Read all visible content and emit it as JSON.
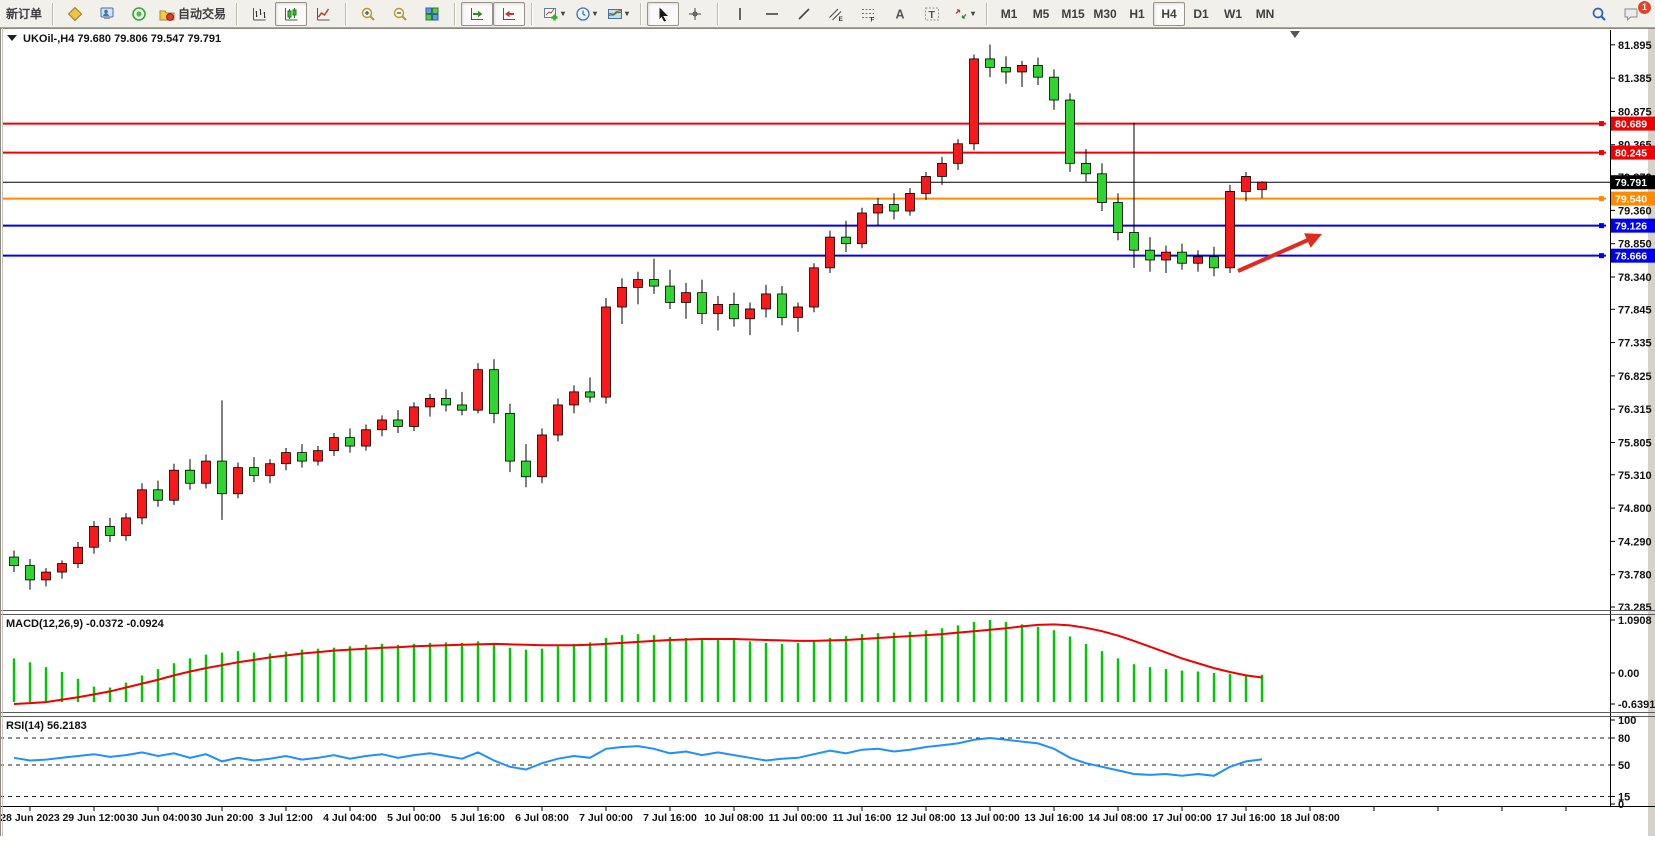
{
  "toolbar": {
    "groups": [
      {
        "items": [
          {
            "name": "new-order",
            "type": "text",
            "label": "新订单"
          }
        ]
      },
      {
        "items": [
          {
            "name": "symbols",
            "icon": "symbols"
          },
          {
            "name": "market-watch",
            "icon": "market-watch"
          },
          {
            "name": "signals",
            "icon": "signals"
          },
          {
            "name": "auto-trading",
            "icon": "autotrading",
            "label": "自动交易"
          }
        ]
      },
      {
        "items": [
          {
            "name": "bar-chart-mode",
            "icon": "bar-chart"
          },
          {
            "name": "candlestick-mode",
            "icon": "candle-chart",
            "pressed": true
          },
          {
            "name": "line-chart-mode",
            "icon": "line-chart"
          }
        ]
      },
      {
        "items": [
          {
            "name": "zoom-in",
            "icon": "zoom-in"
          },
          {
            "name": "zoom-out",
            "icon": "zoom-out"
          },
          {
            "name": "tile-windows",
            "icon": "tile-windows"
          }
        ]
      },
      {
        "items": [
          {
            "name": "auto-scroll",
            "icon": "auto-scroll",
            "pressed": true
          },
          {
            "name": "chart-shift",
            "icon": "chart-shift",
            "pressed": true
          }
        ]
      },
      {
        "items": [
          {
            "name": "new-chart",
            "icon": "new-chart",
            "dropdown": true
          },
          {
            "name": "periods",
            "icon": "period",
            "dropdown": true
          },
          {
            "name": "templates",
            "icon": "template",
            "dropdown": true
          }
        ]
      },
      {
        "items": [
          {
            "name": "cursor",
            "icon": "cursor",
            "pressed": true
          },
          {
            "name": "crosshair",
            "icon": "crosshair"
          }
        ]
      },
      {
        "items": [
          {
            "name": "vertical-line",
            "icon": "v-line"
          },
          {
            "name": "horizontal-line",
            "icon": "h-line"
          },
          {
            "name": "trend-line",
            "icon": "trend-line"
          },
          {
            "name": "equidistant-channel",
            "icon": "channel"
          },
          {
            "name": "fibonacci-retracement",
            "icon": "fibonacci"
          },
          {
            "name": "text",
            "icon": "text"
          },
          {
            "name": "text-label",
            "icon": "text-label"
          },
          {
            "name": "arrow-objects",
            "icon": "arrows",
            "dropdown": true
          }
        ]
      },
      {
        "items": [
          {
            "name": "tf-m1",
            "type": "text",
            "label": "M1"
          },
          {
            "name": "tf-m5",
            "type": "text",
            "label": "M5"
          },
          {
            "name": "tf-m15",
            "type": "text",
            "label": "M15"
          },
          {
            "name": "tf-m30",
            "type": "text",
            "label": "M30"
          },
          {
            "name": "tf-h1",
            "type": "text",
            "label": "H1"
          },
          {
            "name": "tf-h4",
            "type": "text",
            "label": "H4",
            "pressed": true
          },
          {
            "name": "tf-d1",
            "type": "text",
            "label": "D1"
          },
          {
            "name": "tf-w1",
            "type": "text",
            "label": "W1"
          },
          {
            "name": "tf-mn",
            "type": "text",
            "label": "MN"
          }
        ]
      }
    ],
    "right": [
      {
        "name": "search",
        "icon": "search"
      },
      {
        "name": "notifications",
        "icon": "chat",
        "badge": "1"
      }
    ]
  },
  "chart": {
    "title": {
      "text": "UKOil-,H4  79.680 79.806 79.547 79.791"
    },
    "price_axis_ticks": [
      "81.895",
      "81.385",
      "80.875",
      "80.365",
      "79.870",
      "79.360",
      "78.850",
      "78.340",
      "77.845",
      "77.335",
      "76.825",
      "76.315",
      "75.805",
      "75.310",
      "74.800",
      "74.290",
      "73.780",
      "73.285"
    ],
    "levels": [
      {
        "label": "80.689",
        "value": 80.689,
        "color": "#f00000"
      },
      {
        "label": "80.245",
        "value": 80.245,
        "color": "#f00000"
      },
      {
        "label": "79.540",
        "value": 79.54,
        "color": "#ff8a00"
      },
      {
        "label": "79.126",
        "value": 79.126,
        "color": "#0000f0"
      },
      {
        "label": "78.666",
        "value": 78.666,
        "color": "#0000f0"
      }
    ],
    "current_price": {
      "label": "79.791",
      "value": 79.791,
      "color": "#000000"
    },
    "time_axis_labels": [
      "28 Jun 2023",
      "29 Jun 12:00",
      "30 Jun 04:00",
      "30 Jun 20:00",
      "3 Jul 12:00",
      "4 Jul 04:00",
      "5 Jul 00:00",
      "5 Jul 16:00",
      "6 Jul 08:00",
      "7 Jul 00:00",
      "7 Jul 16:00",
      "10 Jul 08:00",
      "11 Jul 00:00",
      "11 Jul 16:00",
      "12 Jul 08:00",
      "13 Jul 00:00",
      "13 Jul 16:00",
      "14 Jul 08:00",
      "17 Jul 00:00",
      "17 Jul 16:00",
      "18 Jul 08:00"
    ]
  },
  "chart_data": {
    "type": "candlestick",
    "symbol": "UKOil-",
    "period": "H4",
    "title": "UKOil-,H4",
    "last_ohlc": {
      "open": "79.680",
      "high": "79.806",
      "low": "79.547",
      "close": "79.791"
    },
    "ylim": [
      73.285,
      82.0
    ],
    "colors": {
      "up": "#f81a1a",
      "down": "#2fd42f",
      "wick": "#000000",
      "macd_hist": "#00c800",
      "macd_signal": "#f00000",
      "rsi_line": "#1e90ff"
    },
    "candles": [
      [
        74.05,
        74.15,
        73.82,
        73.92
      ],
      [
        73.92,
        74.02,
        73.55,
        73.7
      ],
      [
        73.7,
        73.88,
        73.6,
        73.82
      ],
      [
        73.82,
        74.0,
        73.72,
        73.95
      ],
      [
        73.95,
        74.28,
        73.88,
        74.2
      ],
      [
        74.2,
        74.6,
        74.1,
        74.52
      ],
      [
        74.52,
        74.65,
        74.28,
        74.38
      ],
      [
        74.38,
        74.72,
        74.3,
        74.65
      ],
      [
        74.65,
        75.18,
        74.55,
        75.08
      ],
      [
        75.08,
        75.22,
        74.82,
        74.92
      ],
      [
        74.92,
        75.48,
        74.85,
        75.38
      ],
      [
        75.38,
        75.55,
        75.08,
        75.18
      ],
      [
        75.18,
        75.62,
        75.1,
        75.52
      ],
      [
        75.52,
        76.45,
        74.62,
        75.02
      ],
      [
        75.02,
        75.5,
        74.95,
        75.42
      ],
      [
        75.42,
        75.58,
        75.2,
        75.3
      ],
      [
        75.3,
        75.55,
        75.18,
        75.48
      ],
      [
        75.48,
        75.72,
        75.38,
        75.65
      ],
      [
        75.65,
        75.78,
        75.42,
        75.52
      ],
      [
        75.52,
        75.75,
        75.45,
        75.68
      ],
      [
        75.68,
        75.95,
        75.6,
        75.88
      ],
      [
        75.88,
        76.02,
        75.65,
        75.75
      ],
      [
        75.75,
        76.08,
        75.68,
        76.0
      ],
      [
        76.0,
        76.22,
        75.9,
        76.15
      ],
      [
        76.15,
        76.3,
        75.95,
        76.05
      ],
      [
        76.05,
        76.42,
        75.98,
        76.35
      ],
      [
        76.35,
        76.55,
        76.2,
        76.48
      ],
      [
        76.48,
        76.62,
        76.28,
        76.38
      ],
      [
        76.38,
        76.58,
        76.22,
        76.3
      ],
      [
        76.3,
        77.02,
        76.25,
        76.92
      ],
      [
        76.92,
        77.08,
        76.1,
        76.25
      ],
      [
        76.25,
        76.4,
        75.35,
        75.52
      ],
      [
        75.52,
        75.78,
        75.12,
        75.28
      ],
      [
        75.28,
        76.02,
        75.18,
        75.92
      ],
      [
        75.92,
        76.48,
        75.82,
        76.38
      ],
      [
        76.38,
        76.68,
        76.25,
        76.58
      ],
      [
        76.58,
        76.8,
        76.42,
        76.5
      ],
      [
        76.5,
        78.02,
        76.4,
        77.88
      ],
      [
        77.88,
        78.32,
        77.62,
        78.18
      ],
      [
        78.18,
        78.42,
        77.92,
        78.3
      ],
      [
        78.3,
        78.62,
        78.08,
        78.2
      ],
      [
        78.2,
        78.45,
        77.85,
        77.95
      ],
      [
        77.95,
        78.25,
        77.7,
        78.1
      ],
      [
        78.1,
        78.3,
        77.62,
        77.78
      ],
      [
        77.78,
        78.05,
        77.52,
        77.92
      ],
      [
        77.92,
        78.1,
        77.58,
        77.7
      ],
      [
        77.7,
        77.95,
        77.45,
        77.85
      ],
      [
        77.85,
        78.22,
        77.72,
        78.08
      ],
      [
        78.08,
        78.2,
        77.6,
        77.72
      ],
      [
        77.72,
        77.95,
        77.5,
        77.88
      ],
      [
        77.88,
        78.55,
        77.8,
        78.48
      ],
      [
        78.48,
        79.05,
        78.4,
        78.95
      ],
      [
        78.95,
        79.2,
        78.72,
        78.85
      ],
      [
        78.85,
        79.4,
        78.78,
        79.32
      ],
      [
        79.32,
        79.55,
        79.12,
        79.45
      ],
      [
        79.45,
        79.62,
        79.22,
        79.35
      ],
      [
        79.35,
        79.7,
        79.28,
        79.62
      ],
      [
        79.62,
        79.95,
        79.52,
        79.88
      ],
      [
        79.88,
        80.18,
        79.75,
        80.08
      ],
      [
        80.08,
        80.45,
        79.98,
        80.38
      ],
      [
        80.38,
        81.75,
        80.28,
        81.68
      ],
      [
        81.68,
        81.9,
        81.4,
        81.55
      ],
      [
        81.55,
        81.72,
        81.3,
        81.48
      ],
      [
        81.48,
        81.65,
        81.25,
        81.58
      ],
      [
        81.58,
        81.7,
        81.28,
        81.4
      ],
      [
        81.4,
        81.52,
        80.9,
        81.05
      ],
      [
        81.05,
        81.15,
        79.95,
        80.08
      ],
      [
        80.08,
        80.3,
        79.8,
        79.92
      ],
      [
        79.92,
        80.08,
        79.35,
        79.48
      ],
      [
        79.48,
        79.62,
        78.9,
        79.02
      ],
      [
        79.02,
        80.7,
        78.48,
        78.75
      ],
      [
        78.75,
        78.95,
        78.42,
        78.6
      ],
      [
        78.6,
        78.82,
        78.4,
        78.72
      ],
      [
        78.72,
        78.85,
        78.45,
        78.55
      ],
      [
        78.55,
        78.75,
        78.42,
        78.65
      ],
      [
        78.65,
        78.8,
        78.35,
        78.48
      ],
      [
        78.48,
        79.75,
        78.4,
        79.65
      ],
      [
        79.65,
        79.95,
        79.5,
        79.88
      ],
      [
        79.68,
        79.806,
        79.547,
        79.791
      ]
    ],
    "indicators": {
      "macd": {
        "label": "MACD(12,26,9) -0.0372 -0.0924",
        "params": "12,26,9",
        "main_current": -0.0372,
        "signal_current": -0.0924,
        "scale": {
          "max": "1.0908",
          "mid": "0.00",
          "min": "-0.6391"
        },
        "histogram": [
          0.3,
          0.22,
          0.12,
          0.02,
          -0.12,
          -0.28,
          -0.3,
          -0.2,
          -0.05,
          0.08,
          0.2,
          0.3,
          0.38,
          0.42,
          0.45,
          0.42,
          0.4,
          0.44,
          0.48,
          0.5,
          0.52,
          0.55,
          0.58,
          0.6,
          0.58,
          0.6,
          0.62,
          0.63,
          0.62,
          0.65,
          0.6,
          0.52,
          0.48,
          0.5,
          0.55,
          0.6,
          0.63,
          0.72,
          0.78,
          0.8,
          0.78,
          0.74,
          0.72,
          0.7,
          0.7,
          0.68,
          0.65,
          0.62,
          0.6,
          0.62,
          0.66,
          0.72,
          0.76,
          0.8,
          0.82,
          0.83,
          0.85,
          0.88,
          0.92,
          0.98,
          1.05,
          1.09,
          1.05,
          1.0,
          0.95,
          0.88,
          0.75,
          0.6,
          0.45,
          0.3,
          0.18,
          0.12,
          0.08,
          0.05,
          0.03,
          0.0,
          -0.02,
          -0.03,
          -0.0372
        ],
        "signal": [
          -0.64,
          -0.62,
          -0.6,
          -0.55,
          -0.5,
          -0.44,
          -0.38,
          -0.3,
          -0.22,
          -0.14,
          -0.05,
          0.03,
          0.1,
          0.16,
          0.22,
          0.27,
          0.32,
          0.36,
          0.4,
          0.43,
          0.46,
          0.48,
          0.5,
          0.52,
          0.53,
          0.55,
          0.56,
          0.57,
          0.58,
          0.59,
          0.6,
          0.59,
          0.58,
          0.57,
          0.57,
          0.57,
          0.58,
          0.6,
          0.62,
          0.64,
          0.66,
          0.68,
          0.69,
          0.7,
          0.7,
          0.7,
          0.69,
          0.68,
          0.67,
          0.66,
          0.66,
          0.67,
          0.68,
          0.7,
          0.72,
          0.74,
          0.76,
          0.78,
          0.8,
          0.83,
          0.86,
          0.89,
          0.92,
          0.96,
          0.99,
          1.0,
          0.98,
          0.93,
          0.86,
          0.77,
          0.66,
          0.54,
          0.42,
          0.3,
          0.2,
          0.1,
          0.02,
          -0.05,
          -0.0924
        ]
      },
      "rsi": {
        "label": "RSI(14) 56.2183",
        "period": 14,
        "current": 56.2183,
        "levels": [
          80,
          50,
          15
        ],
        "scale_labels": [
          "100",
          "80",
          "50",
          "15",
          "0"
        ],
        "values": [
          58,
          55,
          56,
          58,
          60,
          62,
          59,
          61,
          64,
          60,
          63,
          58,
          62,
          54,
          58,
          55,
          57,
          60,
          56,
          58,
          61,
          57,
          60,
          62,
          58,
          61,
          63,
          60,
          57,
          64,
          55,
          48,
          45,
          52,
          57,
          60,
          58,
          68,
          70,
          71,
          68,
          63,
          65,
          61,
          64,
          61,
          58,
          55,
          57,
          58,
          62,
          66,
          63,
          67,
          68,
          65,
          67,
          70,
          72,
          74,
          78,
          80,
          78,
          76,
          74,
          68,
          58,
          52,
          48,
          44,
          40,
          39,
          40,
          38,
          40,
          38,
          48,
          54,
          56.22
        ],
        "legend_position": "top-left"
      }
    },
    "annotation_arrow": {
      "color": "#e02a20",
      "direction": "up-right"
    }
  }
}
